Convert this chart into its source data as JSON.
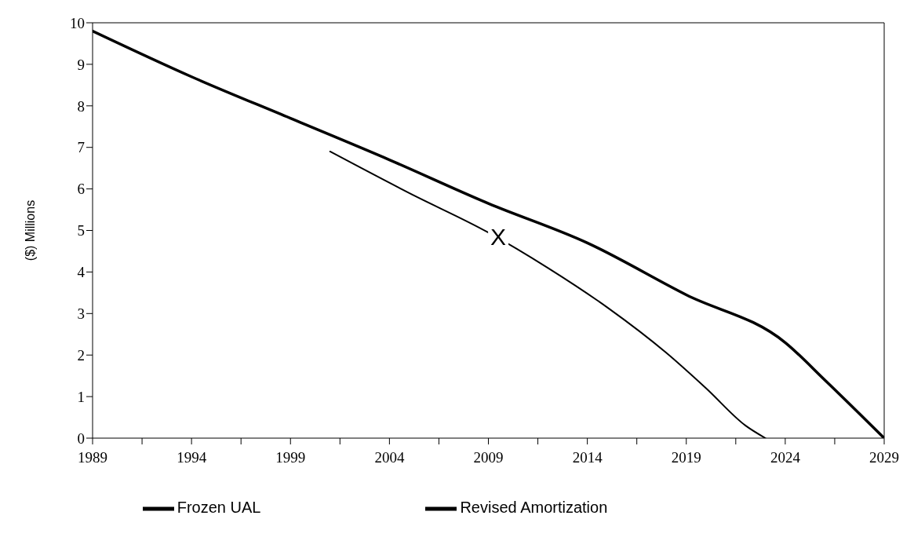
{
  "chart_data": {
    "type": "line",
    "ylabel": "($) Millions",
    "xlim": [
      1989,
      2029
    ],
    "xticks": [
      1989,
      {
        "value": 1991.5,
        "label": null
      },
      1994,
      {
        "value": 1996.5,
        "label": null
      },
      1999,
      {
        "value": 2001.5,
        "label": null
      },
      2004,
      {
        "value": 2006.5,
        "label": null
      },
      2009,
      {
        "value": 2011.5,
        "label": null
      },
      2014,
      {
        "value": 2016.5,
        "label": null
      },
      2019,
      {
        "value": 2021.5,
        "label": null
      },
      2024,
      {
        "value": 2026.5,
        "label": null
      },
      2029
    ],
    "ylim": [
      0,
      10
    ],
    "yticks": [
      0,
      1,
      2,
      3,
      4,
      5,
      6,
      7,
      8,
      9,
      10
    ],
    "grid": false,
    "legend": "bottom",
    "marker": "none",
    "line_style": "solid",
    "series": [
      {
        "name": "Frozen UAL",
        "color": "#000000",
        "x": [
          1989,
          1994,
          1999,
          2004,
          2009,
          2014,
          2019,
          2024,
          2026,
          2029
        ],
        "values": [
          9.8,
          8.7,
          7.7,
          6.7,
          5.65,
          4.7,
          3.45,
          2.3,
          1.4,
          0
        ]
      },
      {
        "name": "Revised Amortization",
        "color": "#000000",
        "x": [
          2001,
          2005,
          2009,
          2012,
          2015,
          2018,
          2020,
          2022,
          2023
        ],
        "values": [
          6.9,
          5.9,
          4.95,
          4.1,
          3.15,
          2.05,
          1.2,
          0.3,
          0
        ]
      }
    ],
    "annotations": [
      {
        "text": "X",
        "x": 2009.5,
        "y": 4.85
      }
    ]
  }
}
